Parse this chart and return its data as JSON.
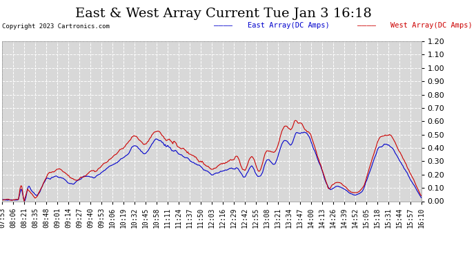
{
  "title": "East & West Array Current Tue Jan 3 16:18",
  "copyright": "Copyright 2023 Cartronics.com",
  "legend_east": "East Array(DC Amps)",
  "legend_west": "West Array(DC Amps)",
  "east_color": "#0000cc",
  "west_color": "#cc0000",
  "ylim": [
    0.0,
    1.2
  ],
  "yticks": [
    0.0,
    0.1,
    0.2,
    0.3,
    0.4,
    0.5,
    0.6,
    0.7,
    0.8,
    0.9,
    1.0,
    1.1,
    1.2
  ],
  "background_color": "#ffffff",
  "plot_bg_color": "#d8d8d8",
  "grid_color": "#ffffff",
  "title_fontsize": 14,
  "tick_fontsize": 7,
  "n_points": 500
}
